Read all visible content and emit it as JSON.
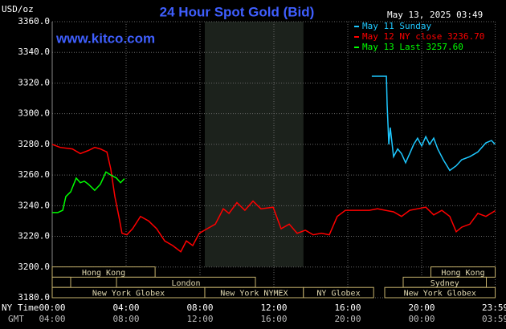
{
  "chart_data": {
    "type": "line",
    "title": "24 Hour Spot Gold (Bid)",
    "y_unit": "USD/oz",
    "timestamp": "May 13, 2025 03:49",
    "watermark": "www.kitco.com",
    "x_row_labels": [
      "NY Time",
      "GMT"
    ],
    "xlim": [
      0,
      24
    ],
    "xticks": [
      {
        "value": 0,
        "label": "00:00"
      },
      {
        "value": 4,
        "label": "04:00"
      },
      {
        "value": 8,
        "label": "08:00"
      },
      {
        "value": 12,
        "label": "12:00"
      },
      {
        "value": 16,
        "label": "16:00"
      },
      {
        "value": 20,
        "label": "20:00"
      },
      {
        "value": 23.98,
        "label": "23:59"
      }
    ],
    "gmt_ticks": [
      {
        "value": 0,
        "label": "04:00"
      },
      {
        "value": 4,
        "label": "08:00"
      },
      {
        "value": 8,
        "label": "12:00"
      },
      {
        "value": 12,
        "label": "16:00"
      },
      {
        "value": 16,
        "label": "20:00"
      },
      {
        "value": 20,
        "label": "00:00"
      },
      {
        "value": 23.98,
        "label": "03:59"
      }
    ],
    "ylim": [
      3180,
      3360
    ],
    "yticks": [
      {
        "value": 3180,
        "label": "3180.0"
      },
      {
        "value": 3200,
        "label": "3200.0"
      },
      {
        "value": 3220,
        "label": "3220.0"
      },
      {
        "value": 3240,
        "label": "3240.0"
      },
      {
        "value": 3260,
        "label": "3260.0"
      },
      {
        "value": 3280,
        "label": "3280.0"
      },
      {
        "value": 3300,
        "label": "3300.0"
      },
      {
        "value": 3320,
        "label": "3320.0"
      },
      {
        "value": 3340,
        "label": "3340.0"
      },
      {
        "value": 3360,
        "label": "3360.0"
      }
    ],
    "grid": true,
    "shaded_range": [
      8.26,
      13.6
    ],
    "session_rows": [
      [
        {
          "label": "Hong Kong",
          "start": 0,
          "end": 5.57
        },
        {
          "label": "Hong Kong",
          "start": 20.5,
          "end": 23.98
        }
      ],
      [
        {
          "start": 0,
          "end": 1.0
        },
        {
          "label": "London",
          "start": 3.48,
          "end": 11.0
        },
        {
          "label": "Sydney",
          "start": 19.0,
          "end": 23.5
        }
      ],
      [
        {
          "label": "New York Globex",
          "start": 0,
          "end": 8.26
        },
        {
          "label": "New York NYMEX",
          "start": 8.26,
          "end": 13.6
        },
        {
          "label": "NY Globex",
          "start": 13.6,
          "end": 17.4
        },
        {
          "label": "New York Globex",
          "start": 18.0,
          "end": 23.98
        }
      ]
    ],
    "series": [
      {
        "name": "May 11 Sunday",
        "color": "#1ec8ff",
        "x": [
          17.3,
          18.09,
          18.13,
          18.22,
          18.3,
          18.48,
          18.7,
          18.91,
          19.13,
          19.35,
          19.57,
          19.78,
          20,
          20.22,
          20.43,
          20.65,
          20.87,
          21.17,
          21.52,
          21.87,
          22.17,
          22.61,
          23.04,
          23.48,
          23.78,
          23.98
        ],
        "values": [
          3324.4,
          3324.4,
          3306,
          3280,
          3291,
          3272,
          3277,
          3274,
          3268,
          3274,
          3280,
          3284,
          3279,
          3285,
          3280,
          3284,
          3277,
          3270,
          3263,
          3266,
          3270,
          3272,
          3275,
          3281,
          3282.5,
          3280
        ]
      },
      {
        "name": "May 12 NY close 3236.70",
        "color": "#ff0000",
        "x": [
          0,
          0.43,
          1.09,
          1.52,
          1.96,
          2.3,
          2.61,
          2.96,
          3.17,
          3.39,
          3.61,
          3.78,
          4.04,
          4.35,
          4.78,
          5.22,
          5.65,
          6.09,
          6.52,
          6.96,
          7.26,
          7.61,
          7.96,
          8.39,
          8.83,
          9.26,
          9.57,
          10,
          10.43,
          10.87,
          11.3,
          11.96,
          12.39,
          12.83,
          13.26,
          13.7,
          14.13,
          14.57,
          15,
          15.43,
          15.87,
          16.3,
          16.74,
          17.17,
          17.61,
          18.04,
          18.48,
          18.91,
          19.35,
          19.78,
          20.22,
          20.65,
          21.09,
          21.52,
          21.87,
          22.17,
          22.61,
          23.04,
          23.48,
          23.98
        ],
        "values": [
          3280,
          3278,
          3277,
          3274,
          3276,
          3278,
          3277,
          3275,
          3264,
          3246,
          3233,
          3222,
          3221,
          3225,
          3233,
          3230,
          3225,
          3217,
          3214,
          3210,
          3217,
          3214,
          3222,
          3225,
          3228,
          3238,
          3235,
          3242,
          3237,
          3243,
          3238,
          3239,
          3225,
          3228,
          3222,
          3224,
          3221,
          3222,
          3221,
          3233,
          3237,
          3237,
          3237,
          3237,
          3238,
          3237,
          3236,
          3233,
          3237,
          3238,
          3239,
          3234,
          3237,
          3233,
          3223,
          3226,
          3228,
          3235,
          3233,
          3236.7
        ]
      },
      {
        "name": "May 13 Last 3257.60",
        "color": "#00ff00",
        "x": [
          0,
          0.3,
          0.57,
          0.74,
          1,
          1.3,
          1.52,
          1.74,
          1.96,
          2.3,
          2.61,
          2.91,
          3.17,
          3.48,
          3.7,
          3.91
        ],
        "values": [
          3235.5,
          3235.5,
          3237,
          3246,
          3249,
          3258,
          3255,
          3256,
          3254,
          3250,
          3254,
          3262,
          3260,
          3258,
          3255,
          3257.6
        ]
      }
    ]
  }
}
